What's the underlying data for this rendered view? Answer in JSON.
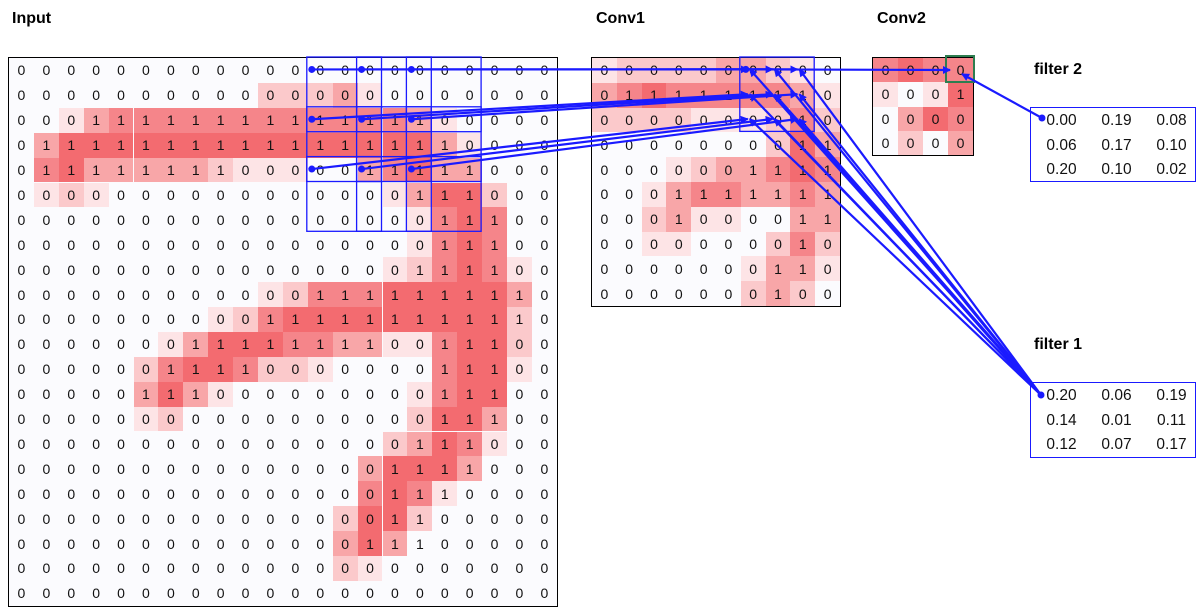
{
  "titles": {
    "input": "Input",
    "conv1": "Conv1",
    "conv2": "Conv2",
    "filter2": "filter 2",
    "filter1": "filter 1"
  },
  "colors": {
    "line": "#1a1aff",
    "highlight": "#2e7d4f",
    "shades": [
      "#fbfbfe",
      "#fde4e6",
      "#fbc9cb",
      "#f8a6a8",
      "#f5858a",
      "#f36b70"
    ]
  },
  "input": {
    "values": [
      [
        0,
        0,
        0,
        0,
        0,
        0,
        0,
        0,
        0,
        0,
        0,
        0,
        0,
        0,
        0,
        0,
        0,
        0,
        0,
        0,
        0,
        0
      ],
      [
        0,
        0,
        0,
        0,
        0,
        0,
        0,
        0,
        0,
        0,
        0,
        0,
        0,
        0,
        0,
        0,
        0,
        0,
        0,
        0,
        0,
        0
      ],
      [
        0,
        0,
        0,
        1,
        1,
        1,
        1,
        1,
        1,
        1,
        1,
        1,
        1,
        1,
        1,
        1,
        1,
        0,
        0,
        0,
        0,
        0
      ],
      [
        0,
        1,
        1,
        1,
        1,
        1,
        1,
        1,
        1,
        1,
        1,
        1,
        1,
        1,
        1,
        1,
        1,
        1,
        0,
        0,
        0,
        0
      ],
      [
        0,
        1,
        1,
        1,
        1,
        1,
        1,
        1,
        1,
        0,
        0,
        0,
        0,
        0,
        1,
        1,
        1,
        1,
        1,
        0,
        0,
        0
      ],
      [
        0,
        0,
        0,
        0,
        0,
        0,
        0,
        0,
        0,
        0,
        0,
        0,
        0,
        0,
        0,
        0,
        1,
        1,
        1,
        0,
        0,
        0
      ],
      [
        0,
        0,
        0,
        0,
        0,
        0,
        0,
        0,
        0,
        0,
        0,
        0,
        0,
        0,
        0,
        0,
        0,
        1,
        1,
        1,
        0,
        0
      ],
      [
        0,
        0,
        0,
        0,
        0,
        0,
        0,
        0,
        0,
        0,
        0,
        0,
        0,
        0,
        0,
        0,
        0,
        1,
        1,
        1,
        0,
        0
      ],
      [
        0,
        0,
        0,
        0,
        0,
        0,
        0,
        0,
        0,
        0,
        0,
        0,
        0,
        0,
        0,
        0,
        1,
        1,
        1,
        1,
        0,
        0
      ],
      [
        0,
        0,
        0,
        0,
        0,
        0,
        0,
        0,
        0,
        0,
        0,
        0,
        1,
        1,
        1,
        1,
        1,
        1,
        1,
        1,
        1,
        0
      ],
      [
        0,
        0,
        0,
        0,
        0,
        0,
        0,
        0,
        0,
        0,
        1,
        1,
        1,
        1,
        1,
        1,
        1,
        1,
        1,
        1,
        1,
        0
      ],
      [
        0,
        0,
        0,
        0,
        0,
        0,
        0,
        1,
        1,
        1,
        1,
        1,
        1,
        1,
        1,
        0,
        0,
        1,
        1,
        1,
        0,
        0
      ],
      [
        0,
        0,
        0,
        0,
        0,
        0,
        1,
        1,
        1,
        1,
        0,
        0,
        0,
        0,
        0,
        0,
        0,
        1,
        1,
        1,
        0,
        0
      ],
      [
        0,
        0,
        0,
        0,
        0,
        1,
        1,
        1,
        0,
        0,
        0,
        0,
        0,
        0,
        0,
        0,
        0,
        1,
        1,
        1,
        0,
        0
      ],
      [
        0,
        0,
        0,
        0,
        0,
        0,
        0,
        0,
        0,
        0,
        0,
        0,
        0,
        0,
        0,
        0,
        0,
        1,
        1,
        1,
        0,
        0
      ],
      [
        0,
        0,
        0,
        0,
        0,
        0,
        0,
        0,
        0,
        0,
        0,
        0,
        0,
        0,
        0,
        0,
        1,
        1,
        1,
        0,
        0,
        0
      ],
      [
        0,
        0,
        0,
        0,
        0,
        0,
        0,
        0,
        0,
        0,
        0,
        0,
        0,
        0,
        0,
        1,
        1,
        1,
        1,
        0,
        0,
        0
      ],
      [
        0,
        0,
        0,
        0,
        0,
        0,
        0,
        0,
        0,
        0,
        0,
        0,
        0,
        0,
        0,
        1,
        1,
        1,
        0,
        0,
        0,
        0
      ],
      [
        0,
        0,
        0,
        0,
        0,
        0,
        0,
        0,
        0,
        0,
        0,
        0,
        0,
        0,
        0,
        1,
        1,
        0,
        0,
        0,
        0,
        0
      ],
      [
        0,
        0,
        0,
        0,
        0,
        0,
        0,
        0,
        0,
        0,
        0,
        0,
        0,
        0,
        1,
        1,
        1,
        0,
        0,
        0,
        0,
        0
      ],
      [
        0,
        0,
        0,
        0,
        0,
        0,
        0,
        0,
        0,
        0,
        0,
        0,
        0,
        0,
        0,
        0,
        0,
        0,
        0,
        0,
        0,
        0
      ],
      [
        0,
        0,
        0,
        0,
        0,
        0,
        0,
        0,
        0,
        0,
        0,
        0,
        0,
        0,
        0,
        0,
        0,
        0,
        0,
        0,
        0,
        0
      ]
    ],
    "shade": [
      [
        0,
        0,
        0,
        0,
        0,
        0,
        0,
        0,
        0,
        0,
        0,
        0,
        0,
        0,
        0,
        0,
        0,
        0,
        0,
        0,
        0,
        0
      ],
      [
        0,
        0,
        0,
        0,
        0,
        0,
        0,
        0,
        0,
        0,
        2,
        2,
        2,
        3,
        1,
        0,
        0,
        0,
        0,
        0,
        0,
        0
      ],
      [
        0,
        0,
        1,
        3,
        4,
        4,
        4,
        4,
        4,
        4,
        4,
        4,
        4,
        4,
        4,
        4,
        3,
        1,
        0,
        0,
        0,
        0
      ],
      [
        0,
        3,
        5,
        5,
        5,
        5,
        5,
        5,
        5,
        5,
        5,
        5,
        5,
        5,
        5,
        5,
        5,
        3,
        1,
        0,
        0,
        0
      ],
      [
        0,
        4,
        5,
        3,
        3,
        3,
        3,
        3,
        2,
        1,
        1,
        1,
        0,
        0,
        3,
        4,
        5,
        3,
        3,
        0,
        0,
        0
      ],
      [
        0,
        1,
        2,
        1,
        0,
        0,
        0,
        0,
        0,
        0,
        0,
        0,
        0,
        0,
        0,
        1,
        3,
        5,
        5,
        2,
        0,
        0
      ],
      [
        0,
        0,
        0,
        0,
        0,
        0,
        0,
        0,
        0,
        0,
        0,
        0,
        0,
        0,
        0,
        0,
        1,
        4,
        5,
        4,
        0,
        0
      ],
      [
        0,
        0,
        0,
        0,
        0,
        0,
        0,
        0,
        0,
        0,
        0,
        0,
        0,
        0,
        0,
        0,
        1,
        4,
        5,
        4,
        0,
        0
      ],
      [
        0,
        0,
        0,
        0,
        0,
        0,
        0,
        0,
        0,
        0,
        0,
        0,
        0,
        0,
        0,
        1,
        2,
        4,
        5,
        4,
        1,
        0
      ],
      [
        0,
        0,
        0,
        0,
        0,
        0,
        0,
        0,
        0,
        0,
        1,
        2,
        4,
        4,
        4,
        5,
        5,
        5,
        5,
        5,
        3,
        0
      ],
      [
        0,
        0,
        0,
        0,
        0,
        0,
        0,
        0,
        1,
        2,
        4,
        5,
        5,
        5,
        5,
        5,
        5,
        5,
        5,
        5,
        2,
        0
      ],
      [
        0,
        0,
        0,
        0,
        0,
        0,
        1,
        3,
        5,
        5,
        5,
        4,
        4,
        3,
        3,
        1,
        1,
        4,
        5,
        5,
        2,
        0
      ],
      [
        0,
        0,
        0,
        0,
        0,
        2,
        4,
        5,
        5,
        4,
        2,
        2,
        1,
        0,
        0,
        0,
        0,
        4,
        5,
        5,
        1,
        0
      ],
      [
        0,
        0,
        0,
        0,
        0,
        3,
        5,
        3,
        1,
        0,
        0,
        0,
        0,
        0,
        0,
        0,
        1,
        4,
        5,
        5,
        0,
        0
      ],
      [
        0,
        0,
        0,
        0,
        0,
        1,
        2,
        0,
        0,
        0,
        0,
        0,
        0,
        0,
        0,
        0,
        2,
        5,
        5,
        3,
        0,
        0
      ],
      [
        0,
        0,
        0,
        0,
        0,
        0,
        0,
        0,
        0,
        0,
        0,
        0,
        0,
        0,
        0,
        2,
        3,
        5,
        4,
        1,
        0,
        0
      ],
      [
        0,
        0,
        0,
        0,
        0,
        0,
        0,
        0,
        0,
        0,
        0,
        0,
        0,
        0,
        3,
        5,
        5,
        5,
        3,
        0,
        0,
        0
      ],
      [
        0,
        0,
        0,
        0,
        0,
        0,
        0,
        0,
        0,
        0,
        0,
        0,
        0,
        0,
        4,
        5,
        4,
        1,
        0,
        0,
        0,
        0
      ],
      [
        0,
        0,
        0,
        0,
        0,
        0,
        0,
        0,
        0,
        0,
        0,
        0,
        0,
        2,
        5,
        5,
        2,
        0,
        0,
        0,
        0,
        0
      ],
      [
        0,
        0,
        0,
        0,
        0,
        0,
        0,
        0,
        0,
        0,
        0,
        0,
        0,
        3,
        5,
        3,
        0,
        0,
        0,
        0,
        0,
        0
      ],
      [
        0,
        0,
        0,
        0,
        0,
        0,
        0,
        0,
        0,
        0,
        0,
        0,
        0,
        2,
        1,
        0,
        0,
        0,
        0,
        0,
        0,
        0
      ],
      [
        0,
        0,
        0,
        0,
        0,
        0,
        0,
        0,
        0,
        0,
        0,
        0,
        0,
        0,
        0,
        0,
        0,
        0,
        0,
        0,
        0,
        0
      ]
    ]
  },
  "conv1": {
    "values": [
      [
        0,
        0,
        0,
        0,
        0,
        0,
        0,
        0,
        0,
        0
      ],
      [
        0,
        1,
        1,
        1,
        1,
        1,
        1,
        1,
        1,
        0
      ],
      [
        0,
        0,
        0,
        0,
        0,
        0,
        0,
        0,
        1,
        0
      ],
      [
        0,
        0,
        0,
        0,
        0,
        0,
        0,
        0,
        1,
        1
      ],
      [
        0,
        0,
        0,
        0,
        0,
        0,
        1,
        1,
        1,
        1
      ],
      [
        0,
        0,
        0,
        1,
        1,
        1,
        1,
        1,
        1,
        1
      ],
      [
        0,
        0,
        0,
        1,
        0,
        0,
        0,
        0,
        1,
        1
      ],
      [
        0,
        0,
        0,
        0,
        0,
        0,
        0,
        0,
        1,
        0
      ],
      [
        0,
        0,
        0,
        0,
        0,
        0,
        0,
        1,
        1,
        0
      ],
      [
        0,
        0,
        0,
        0,
        0,
        0,
        0,
        1,
        0,
        0
      ]
    ],
    "shade": [
      [
        1,
        2,
        2,
        2,
        2,
        3,
        3,
        2,
        1,
        0
      ],
      [
        3,
        4,
        5,
        4,
        4,
        4,
        4,
        4,
        3,
        1
      ],
      [
        2,
        2,
        2,
        2,
        1,
        1,
        1,
        2,
        4,
        2
      ],
      [
        0,
        0,
        0,
        0,
        0,
        0,
        0,
        2,
        5,
        3
      ],
      [
        0,
        0,
        0,
        1,
        2,
        3,
        3,
        4,
        5,
        4
      ],
      [
        0,
        0,
        1,
        3,
        4,
        4,
        3,
        3,
        4,
        3
      ],
      [
        0,
        0,
        2,
        3,
        1,
        1,
        0,
        0,
        3,
        3
      ],
      [
        0,
        0,
        1,
        1,
        0,
        0,
        0,
        2,
        4,
        2
      ],
      [
        0,
        0,
        0,
        0,
        0,
        0,
        1,
        3,
        3,
        1
      ],
      [
        0,
        0,
        0,
        0,
        0,
        0,
        2,
        3,
        2,
        0
      ]
    ]
  },
  "conv2": {
    "values": [
      [
        0,
        0,
        0,
        0
      ],
      [
        0,
        0,
        0,
        1
      ],
      [
        0,
        0,
        0,
        0
      ],
      [
        0,
        0,
        0,
        0
      ]
    ],
    "shade": [
      [
        4,
        5,
        4,
        4
      ],
      [
        1,
        0,
        1,
        5
      ],
      [
        0,
        3,
        5,
        4
      ],
      [
        0,
        2,
        0,
        3
      ]
    ]
  },
  "filter2": [
    [
      "0.00",
      "0.19",
      "0.08"
    ],
    [
      "0.06",
      "0.17",
      "0.10"
    ],
    [
      "0.20",
      "0.10",
      "0.02"
    ]
  ],
  "filter1": [
    [
      "0.20",
      "0.06",
      "0.19"
    ],
    [
      "0.14",
      "0.01",
      "0.11"
    ],
    [
      "0.12",
      "0.07",
      "0.17"
    ]
  ]
}
